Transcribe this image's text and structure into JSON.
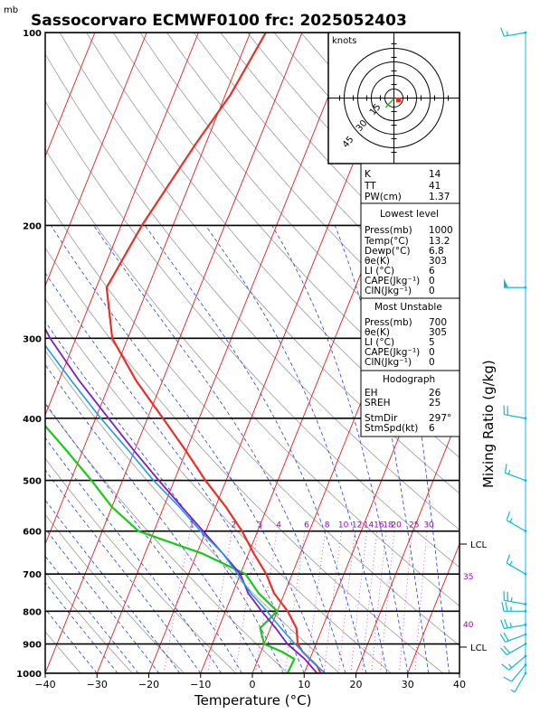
{
  "title": "Sassocorvaro ECMWF0100 frc: 2025052403",
  "pressure_unit": "mb",
  "x_axis_label": "Temperature (°C)",
  "right_axis_label": "Mixing Ratio (g/kg)",
  "hodograph": {
    "unit_label": "knots",
    "ring_labels": [
      "15",
      "30",
      "45"
    ]
  },
  "mixing_ratio_labels": [
    "1",
    "2",
    "3",
    "4",
    "6",
    "8",
    "10",
    "12",
    "14",
    "16",
    "18",
    "20",
    "25",
    "30"
  ],
  "right_side_labels": {
    "lcl_upper": "LCL",
    "lcl_lower": "LCL",
    "iso_35": "35",
    "iso_40": "40"
  },
  "indices": {
    "rows": [
      {
        "label": "K",
        "value": "14"
      },
      {
        "label": "TT",
        "value": "41"
      },
      {
        "label": "PW(cm)",
        "value": "1.37"
      }
    ]
  },
  "lowest_level": {
    "header": "Lowest level",
    "rows": [
      {
        "label": "Press(mb)",
        "value": "1000"
      },
      {
        "label": "Temp(°C)",
        "value": "13.2"
      },
      {
        "label": "Dewp(°C)",
        "value": "6.8"
      },
      {
        "label": "θe(K)",
        "value": "303"
      },
      {
        "label": "LI (°C)",
        "value": "6"
      },
      {
        "label": "CAPE(Jkg⁻¹)",
        "value": "0"
      },
      {
        "label": "CIN(Jkg⁻¹)",
        "value": "0"
      }
    ]
  },
  "most_unstable": {
    "header": "Most Unstable",
    "rows": [
      {
        "label": "Press(mb)",
        "value": "700"
      },
      {
        "label": "θe(K)",
        "value": "305"
      },
      {
        "label": "LI (°C)",
        "value": "5"
      },
      {
        "label": "CAPE(Jkg⁻¹)",
        "value": "0"
      },
      {
        "label": "CIN(Jkg⁻¹)",
        "value": "0"
      }
    ]
  },
  "hodograph_table": {
    "header": "Hodograph",
    "rows": [
      {
        "label": "EH",
        "value": "26"
      },
      {
        "label": "SREH",
        "value": "25"
      },
      {
        "label": "StmDir",
        "value": "297°"
      },
      {
        "label": "StmSpd(kt)",
        "value": "6"
      }
    ]
  },
  "colors": {
    "temperature": "#e8302a",
    "dewpoint": "#19c819",
    "parcel": "#7a1ec8",
    "virtual": "#1e9be6",
    "isotherm": "#e02020",
    "dry_adiabat": "#9a9a9a",
    "moist_adiabat": "#2040e0",
    "mixing_ratio": "#c040c0",
    "wind_barb": "#10b8d8"
  },
  "chart_data": {
    "type": "line",
    "chart_kind": "skew-t log-p sounding",
    "x_label": "Temperature (°C)",
    "y_label": "mb",
    "x_ticks": [
      -40,
      -30,
      -20,
      -10,
      0,
      10,
      20,
      30,
      40
    ],
    "y_ticks": [
      100,
      200,
      300,
      400,
      500,
      600,
      700,
      800,
      900,
      1000
    ],
    "xlim": [
      -40,
      40
    ],
    "ylim": [
      1000,
      100
    ],
    "y_scale": "log",
    "series": [
      {
        "name": "Temperature",
        "p": [
          1000,
          975,
          950,
          925,
          900,
          850,
          800,
          750,
          700,
          650,
          600,
          550,
          500,
          450,
          400,
          350,
          300,
          250,
          200,
          150,
          125,
          100
        ],
        "t": [
          13.2,
          12,
          10,
          8,
          6.5,
          5,
          2,
          -2,
          -5,
          -9,
          -13,
          -18,
          -24,
          -30,
          -37,
          -45,
          -53,
          -58,
          -56,
          -52,
          -49,
          -47
        ]
      },
      {
        "name": "Dewpoint",
        "p": [
          1000,
          950,
          925,
          900,
          850,
          800,
          750,
          700,
          650,
          600,
          550,
          500,
          450,
          400,
          350,
          300,
          250,
          200,
          150,
          100
        ],
        "t": [
          6.8,
          7,
          4,
          0,
          -2,
          0,
          -5,
          -9,
          -19,
          -33,
          -40,
          -46,
          -53,
          -61,
          -66,
          -72,
          -78,
          -83,
          -88,
          -92
        ]
      },
      {
        "name": "Parcel",
        "p": [
          1000,
          950,
          900,
          850,
          800,
          750,
          700,
          650,
          600,
          550,
          500,
          450,
          400,
          350,
          300,
          250,
          200,
          150,
          125
        ],
        "t": [
          12.5,
          9,
          4.5,
          1,
          -3,
          -7,
          -10,
          -15,
          -20.5,
          -26.5,
          -33,
          -40,
          -47.5,
          -56,
          -65,
          -74,
          -84,
          -96,
          -103
        ]
      },
      {
        "name": "Virtual",
        "p": [
          1000,
          950,
          900,
          850,
          800,
          750,
          700,
          650,
          600,
          550,
          500,
          450,
          400,
          350,
          300,
          250,
          200,
          150,
          125
        ],
        "t": [
          14,
          10,
          6,
          2,
          -2,
          -6.5,
          -10.5,
          -15,
          -21,
          -27,
          -34,
          -41,
          -49,
          -57.5,
          -67,
          -76,
          -86,
          -98,
          -105
        ]
      }
    ],
    "wind_barbs": {
      "p": [
        1000,
        970,
        940,
        900,
        870,
        840,
        800,
        780,
        700,
        600,
        500,
        400,
        250,
        100
      ],
      "dir": [
        210,
        220,
        230,
        240,
        250,
        260,
        270,
        280,
        300,
        300,
        290,
        280,
        270,
        260
      ],
      "spd_kt": [
        5,
        10,
        15,
        20,
        20,
        25,
        25,
        25,
        15,
        15,
        15,
        20,
        50,
        15
      ]
    },
    "hodograph": {
      "u": [
        0,
        -2,
        -5,
        -8,
        -10
      ],
      "v": [
        0,
        -3,
        -6,
        -9,
        -12
      ]
    }
  }
}
